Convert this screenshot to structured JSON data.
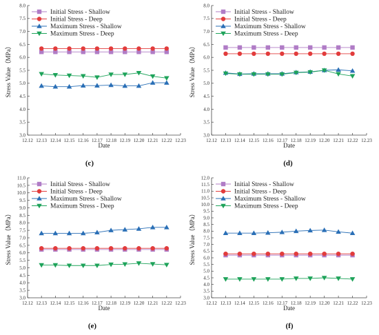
{
  "chart_data": [
    {
      "type": "line",
      "panel_label": "(c)",
      "xlabel": "Date",
      "ylabel": "Stress Value（MPa）",
      "xlim": [
        12.12,
        12.23
      ],
      "xticks": [
        "12.12",
        "12.13",
        "12.14",
        "12.15",
        "12.16",
        "12.17",
        "12.18",
        "12.19",
        "12.20",
        "12.21",
        "12.22",
        "12.23"
      ],
      "ylim": [
        3.0,
        8.0
      ],
      "yticks": [
        "3.0",
        "3.5",
        "4.0",
        "4.5",
        "5.0",
        "5.5",
        "6.0",
        "6.5",
        "7.0",
        "7.5",
        "8.0"
      ],
      "x": [
        12.13,
        12.14,
        12.15,
        12.16,
        12.17,
        12.18,
        12.19,
        12.2,
        12.21,
        12.22
      ],
      "series": [
        {
          "name": "Initial Stress - Shallow",
          "marker": "square",
          "color": "#b07cc6",
          "values": [
            6.21,
            6.21,
            6.21,
            6.21,
            6.21,
            6.21,
            6.21,
            6.21,
            6.21,
            6.21
          ]
        },
        {
          "name": "Initial Stress - Deep",
          "marker": "circle",
          "color": "#e23c3c",
          "values": [
            6.34,
            6.34,
            6.34,
            6.34,
            6.34,
            6.34,
            6.34,
            6.34,
            6.34,
            6.34
          ]
        },
        {
          "name": "Maximum Stress - Shallow",
          "marker": "triangle-up",
          "color": "#2a6fb6",
          "values": [
            4.9,
            4.87,
            4.87,
            4.91,
            4.91,
            4.93,
            4.9,
            4.9,
            5.02,
            5.02
          ]
        },
        {
          "name": "Maximum Stress - Deep",
          "marker": "triangle-down",
          "color": "#1ea35a",
          "values": [
            5.36,
            5.32,
            5.3,
            5.28,
            5.23,
            5.34,
            5.34,
            5.4,
            5.27,
            5.2
          ]
        }
      ],
      "legend": "top-left"
    },
    {
      "type": "line",
      "panel_label": "(d)",
      "xlabel": "Date",
      "ylabel": "Stress Value（MPa）",
      "xlim": [
        12.12,
        12.23
      ],
      "xticks": [
        "12.12",
        "12.13",
        "12.14",
        "12.15",
        "12.16",
        "12.17",
        "12.18",
        "12.19",
        "12.20",
        "12.21",
        "12.22",
        "12.23"
      ],
      "ylim": [
        3.0,
        8.0
      ],
      "yticks": [
        "3.0",
        "3.5",
        "4.0",
        "4.5",
        "5.0",
        "5.5",
        "6.0",
        "6.5",
        "7.0",
        "7.5",
        "8.0"
      ],
      "x": [
        12.13,
        12.14,
        12.15,
        12.16,
        12.17,
        12.18,
        12.19,
        12.2,
        12.21,
        12.22
      ],
      "series": [
        {
          "name": "Initial Stress - Shallow",
          "marker": "square",
          "color": "#b07cc6",
          "values": [
            6.38,
            6.38,
            6.38,
            6.38,
            6.38,
            6.38,
            6.38,
            6.38,
            6.38,
            6.38
          ]
        },
        {
          "name": "Initial Stress - Deep",
          "marker": "circle",
          "color": "#e23c3c",
          "values": [
            6.14,
            6.14,
            6.14,
            6.14,
            6.14,
            6.14,
            6.14,
            6.14,
            6.14,
            6.14
          ]
        },
        {
          "name": "Maximum Stress - Shallow",
          "marker": "triangle-up",
          "color": "#2a6fb6",
          "values": [
            5.4,
            5.36,
            5.37,
            5.37,
            5.37,
            5.42,
            5.44,
            5.5,
            5.52,
            5.48
          ]
        },
        {
          "name": "Maximum Stress - Deep",
          "marker": "triangle-down",
          "color": "#1ea35a",
          "values": [
            5.38,
            5.35,
            5.35,
            5.35,
            5.35,
            5.41,
            5.43,
            5.5,
            5.36,
            5.28
          ]
        }
      ],
      "legend": "top-left"
    },
    {
      "type": "line",
      "panel_label": "(e)",
      "xlabel": "Date",
      "ylabel": "Stress Value（MPa）",
      "xlim": [
        12.12,
        12.23
      ],
      "xticks": [
        "12.12",
        "12.13",
        "12.14",
        "12.15",
        "12.16",
        "12.17",
        "12.18",
        "12.19",
        "12.20",
        "12.21",
        "12.22",
        "12.23"
      ],
      "ylim": [
        3.0,
        11.0
      ],
      "yticks": [
        "3.0",
        "3.5",
        "4.0",
        "4.5",
        "5.0",
        "5.5",
        "6.0",
        "6.5",
        "7.0",
        "7.5",
        "8.0",
        "8.5",
        "9.0",
        "9.5",
        "10.0",
        "10.5",
        "11.0"
      ],
      "x": [
        12.13,
        12.14,
        12.15,
        12.16,
        12.17,
        12.18,
        12.19,
        12.2,
        12.21,
        12.22
      ],
      "series": [
        {
          "name": "Initial Stress - Shallow",
          "marker": "square",
          "color": "#b07cc6",
          "values": [
            6.22,
            6.22,
            6.22,
            6.22,
            6.22,
            6.22,
            6.22,
            6.22,
            6.22,
            6.22
          ]
        },
        {
          "name": "Initial Stress - Deep",
          "marker": "circle",
          "color": "#e23c3c",
          "values": [
            6.3,
            6.3,
            6.3,
            6.3,
            6.3,
            6.3,
            6.3,
            6.3,
            6.3,
            6.3
          ]
        },
        {
          "name": "Maximum Stress - Shallow",
          "marker": "triangle-up",
          "color": "#2a6fb6",
          "values": [
            7.3,
            7.3,
            7.3,
            7.3,
            7.36,
            7.5,
            7.55,
            7.6,
            7.7,
            7.7
          ]
        },
        {
          "name": "Maximum Stress - Deep",
          "marker": "triangle-down",
          "color": "#1ea35a",
          "values": [
            5.18,
            5.18,
            5.15,
            5.15,
            5.15,
            5.22,
            5.24,
            5.3,
            5.25,
            5.2
          ]
        }
      ],
      "legend": "top-left"
    },
    {
      "type": "line",
      "panel_label": "(f)",
      "xlabel": "Date",
      "ylabel": "Stress Value（MPa）",
      "xlim": [
        12.12,
        12.23
      ],
      "xticks": [
        "12.12",
        "12.13",
        "12.14",
        "12.15",
        "12.16",
        "12.17",
        "12.18",
        "12.19",
        "12.20",
        "12.21",
        "12.22",
        "12.23"
      ],
      "ylim": [
        3.0,
        12.0
      ],
      "yticks": [
        "3.0",
        "3.5",
        "4.0",
        "4.5",
        "5.0",
        "5.5",
        "6.0",
        "6.5",
        "7.0",
        "7.5",
        "8.0",
        "8.5",
        "9.0",
        "9.5",
        "10.0",
        "10.5",
        "11.0",
        "11.5",
        "12.0"
      ],
      "x": [
        12.13,
        12.14,
        12.15,
        12.16,
        12.17,
        12.18,
        12.19,
        12.2,
        12.21,
        12.22
      ],
      "series": [
        {
          "name": "Initial Stress - Shallow",
          "marker": "square",
          "color": "#b07cc6",
          "values": [
            6.2,
            6.2,
            6.2,
            6.2,
            6.2,
            6.2,
            6.2,
            6.2,
            6.2,
            6.2
          ]
        },
        {
          "name": "Initial Stress - Deep",
          "marker": "circle",
          "color": "#e23c3c",
          "values": [
            6.3,
            6.3,
            6.3,
            6.3,
            6.3,
            6.3,
            6.3,
            6.3,
            6.3,
            6.3
          ]
        },
        {
          "name": "Maximum Stress - Shallow",
          "marker": "triangle-up",
          "color": "#2a6fb6",
          "values": [
            7.85,
            7.85,
            7.85,
            7.88,
            7.92,
            8.0,
            8.05,
            8.08,
            7.95,
            7.85
          ]
        },
        {
          "name": "Maximum Stress - Deep",
          "marker": "triangle-down",
          "color": "#1ea35a",
          "values": [
            4.4,
            4.4,
            4.4,
            4.4,
            4.4,
            4.45,
            4.45,
            4.5,
            4.45,
            4.4
          ]
        }
      ],
      "legend": "top-left"
    }
  ]
}
